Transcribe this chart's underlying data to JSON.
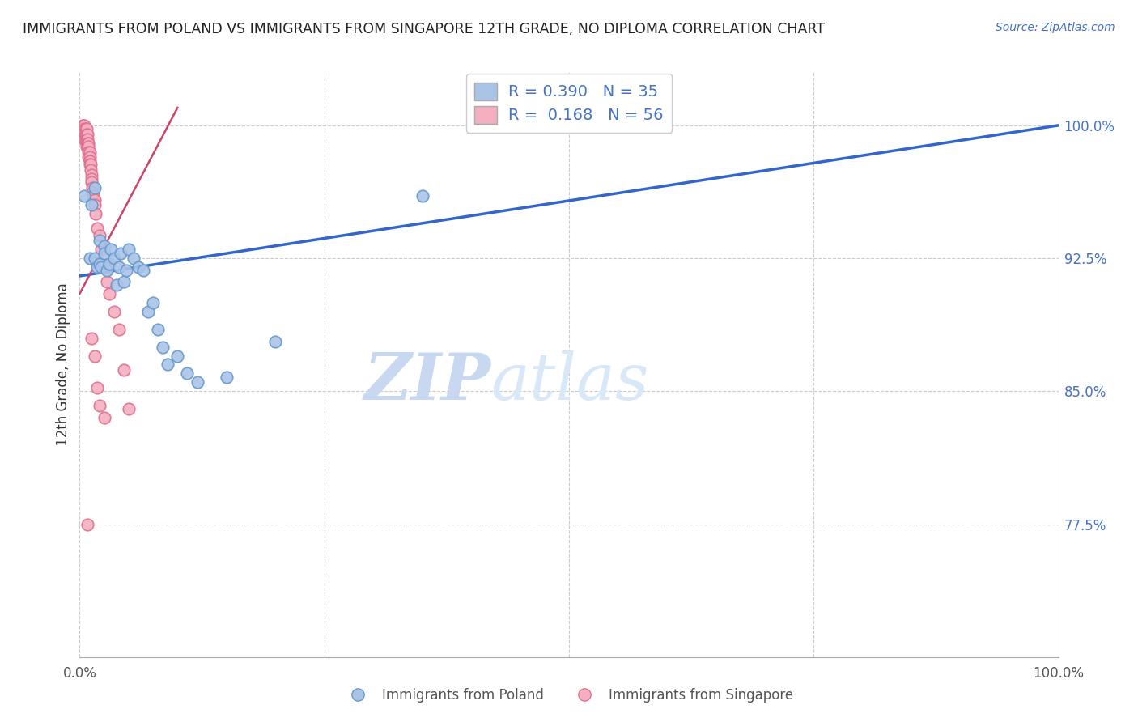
{
  "title": "IMMIGRANTS FROM POLAND VS IMMIGRANTS FROM SINGAPORE 12TH GRADE, NO DIPLOMA CORRELATION CHART",
  "source": "Source: ZipAtlas.com",
  "ylabel": "12th Grade, No Diploma",
  "background_color": "#ffffff",
  "grid_color": "#cccccc",
  "watermark_zip": "ZIP",
  "watermark_atlas": "atlas",
  "xlim": [
    0.0,
    1.0
  ],
  "ylim": [
    0.7,
    1.03
  ],
  "ytick_positions": [
    0.775,
    0.85,
    0.925,
    1.0
  ],
  "ytick_labels": [
    "77.5%",
    "85.0%",
    "92.5%",
    "100.0%"
  ],
  "legend_r_poland": "0.390",
  "legend_n_poland": "35",
  "legend_r_singapore": "0.168",
  "legend_n_singapore": "56",
  "poland_color": "#aac4e8",
  "poland_edge": "#6699cc",
  "singapore_color": "#f4b0c0",
  "singapore_edge": "#e07090",
  "trendline_poland_color": "#3366cc",
  "trendline_singapore_color": "#cc4466",
  "poland_trendline_x0": 0.0,
  "poland_trendline_y0": 0.915,
  "poland_trendline_x1": 1.0,
  "poland_trendline_y1": 1.0,
  "singapore_trendline_x0": 0.0,
  "singapore_trendline_y0": 0.905,
  "singapore_trendline_x1": 0.1,
  "singapore_trendline_y1": 1.01,
  "poland_x": [
    0.005,
    0.01,
    0.012,
    0.015,
    0.015,
    0.018,
    0.02,
    0.02,
    0.022,
    0.025,
    0.025,
    0.028,
    0.03,
    0.032,
    0.035,
    0.038,
    0.04,
    0.042,
    0.045,
    0.048,
    0.05,
    0.055,
    0.06,
    0.065,
    0.07,
    0.075,
    0.08,
    0.085,
    0.09,
    0.1,
    0.11,
    0.12,
    0.15,
    0.2,
    0.35
  ],
  "poland_y": [
    0.96,
    0.925,
    0.955,
    0.965,
    0.925,
    0.92,
    0.922,
    0.935,
    0.92,
    0.932,
    0.928,
    0.918,
    0.922,
    0.93,
    0.925,
    0.91,
    0.92,
    0.928,
    0.912,
    0.918,
    0.93,
    0.925,
    0.92,
    0.918,
    0.895,
    0.9,
    0.885,
    0.875,
    0.865,
    0.87,
    0.86,
    0.855,
    0.858,
    0.878,
    0.96
  ],
  "singapore_x": [
    0.003,
    0.003,
    0.004,
    0.004,
    0.005,
    0.005,
    0.005,
    0.005,
    0.005,
    0.006,
    0.006,
    0.006,
    0.007,
    0.007,
    0.007,
    0.007,
    0.007,
    0.008,
    0.008,
    0.008,
    0.008,
    0.009,
    0.009,
    0.009,
    0.009,
    0.01,
    0.01,
    0.01,
    0.01,
    0.011,
    0.011,
    0.012,
    0.012,
    0.012,
    0.013,
    0.013,
    0.014,
    0.015,
    0.015,
    0.016,
    0.018,
    0.02,
    0.022,
    0.025,
    0.028,
    0.03,
    0.035,
    0.04,
    0.045,
    0.05,
    0.012,
    0.015,
    0.018,
    0.02,
    0.025,
    0.008
  ],
  "singapore_y": [
    1.0,
    0.998,
    1.0,
    0.998,
    1.0,
    0.998,
    0.996,
    0.994,
    0.992,
    0.998,
    0.995,
    0.992,
    0.998,
    0.995,
    0.992,
    0.99,
    0.988,
    0.995,
    0.992,
    0.99,
    0.988,
    0.99,
    0.988,
    0.985,
    0.982,
    0.985,
    0.982,
    0.98,
    0.978,
    0.978,
    0.975,
    0.972,
    0.97,
    0.968,
    0.965,
    0.962,
    0.96,
    0.958,
    0.955,
    0.95,
    0.942,
    0.938,
    0.93,
    0.92,
    0.912,
    0.905,
    0.895,
    0.885,
    0.862,
    0.84,
    0.88,
    0.87,
    0.852,
    0.842,
    0.835,
    0.775
  ]
}
